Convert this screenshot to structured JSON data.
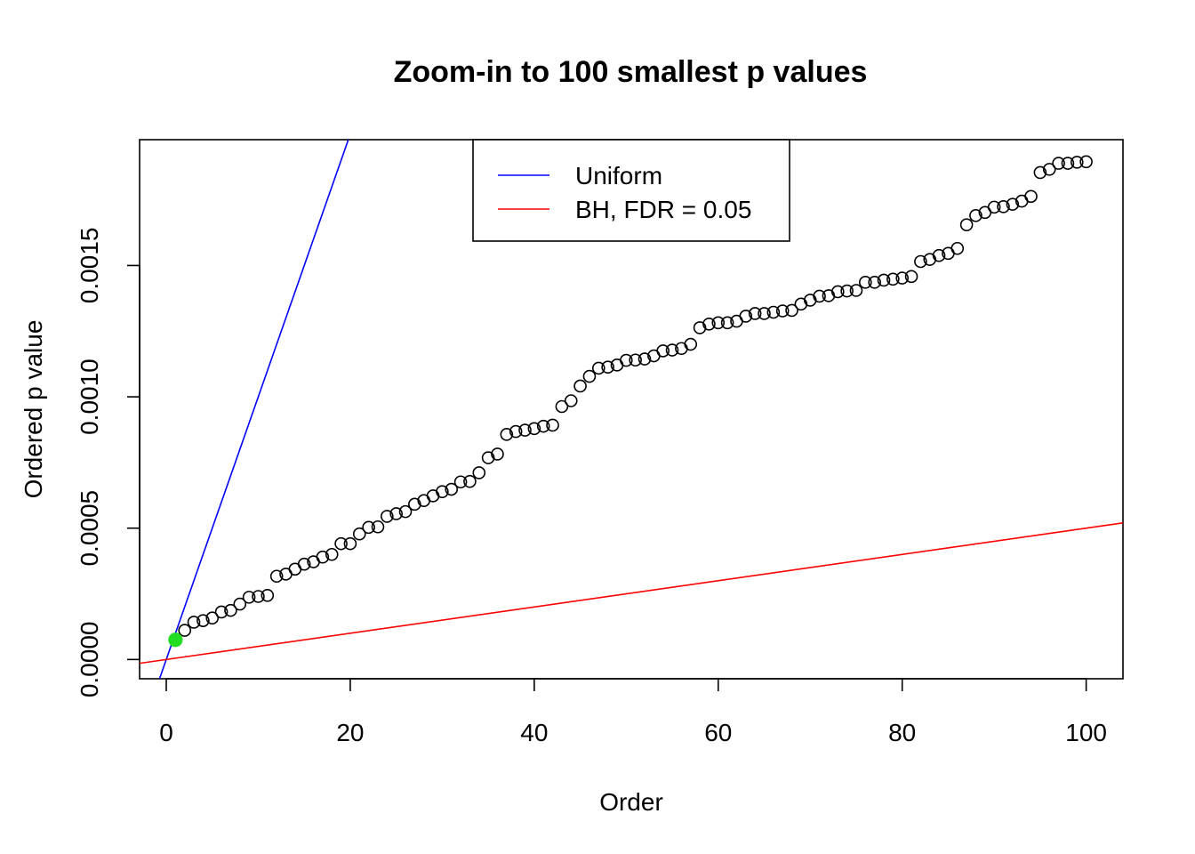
{
  "chart_data": {
    "type": "scatter",
    "title": "Zoom-in to 100 smallest p values",
    "xlabel": "Order",
    "ylabel": "Ordered p value",
    "xlim": [
      -2.9,
      104
    ],
    "ylim": [
      -7.33e-05,
      0.001979
    ],
    "x_ticks": [
      0,
      20,
      40,
      60,
      80,
      100
    ],
    "x_tick_labels": [
      "0",
      "20",
      "40",
      "60",
      "80",
      "100"
    ],
    "y_ticks": [
      0,
      0.0005,
      0.001,
      0.0015
    ],
    "y_tick_labels": [
      "0.0000",
      "0.0005",
      "0.0010",
      "0.0015"
    ],
    "series": [
      {
        "name": "Ordered p values",
        "marker": "open-circle",
        "x": [
          1,
          2,
          3,
          4,
          5,
          6,
          7,
          8,
          9,
          10,
          11,
          12,
          13,
          14,
          15,
          16,
          17,
          18,
          19,
          20,
          21,
          22,
          23,
          24,
          25,
          26,
          27,
          28,
          29,
          30,
          31,
          32,
          33,
          34,
          35,
          36,
          37,
          38,
          39,
          40,
          41,
          42,
          43,
          44,
          45,
          46,
          47,
          48,
          49,
          50,
          51,
          52,
          53,
          54,
          55,
          56,
          57,
          58,
          59,
          60,
          61,
          62,
          63,
          64,
          65,
          66,
          67,
          68,
          69,
          70,
          71,
          72,
          73,
          74,
          75,
          76,
          77,
          78,
          79,
          80,
          81,
          82,
          83,
          84,
          85,
          86,
          87,
          88,
          89,
          90,
          91,
          92,
          93,
          94,
          95,
          96,
          97,
          98,
          99,
          100
        ],
        "y": [
          7.5e-05,
          0.000111,
          0.000142,
          0.000148,
          0.000158,
          0.000181,
          0.000187,
          0.000211,
          0.000237,
          0.00024,
          0.000244,
          0.000317,
          0.000325,
          0.000344,
          0.000363,
          0.000372,
          0.00039,
          0.0004,
          0.000441,
          0.000441,
          0.000478,
          0.000503,
          0.000505,
          0.000545,
          0.000555,
          0.000563,
          0.000591,
          0.000605,
          0.000623,
          0.000639,
          0.000648,
          0.000676,
          0.000678,
          0.000711,
          0.000768,
          0.000782,
          0.000857,
          0.000868,
          0.000873,
          0.000879,
          0.000888,
          0.000892,
          0.000963,
          0.000985,
          0.001041,
          0.001078,
          0.001109,
          0.001113,
          0.001121,
          0.001139,
          0.00114,
          0.001144,
          0.001156,
          0.001175,
          0.001178,
          0.001184,
          0.0012,
          0.001263,
          0.001277,
          0.001282,
          0.001282,
          0.001288,
          0.001307,
          0.001317,
          0.001317,
          0.001322,
          0.001327,
          0.001329,
          0.001353,
          0.001368,
          0.001383,
          0.001385,
          0.0014,
          0.001403,
          0.001405,
          0.001436,
          0.001436,
          0.001444,
          0.001448,
          0.001452,
          0.001458,
          0.001515,
          0.001523,
          0.001538,
          0.001546,
          0.001565,
          0.001655,
          0.00169,
          0.001702,
          0.001722,
          0.001724,
          0.001733,
          0.001745,
          0.001763,
          0.001854,
          0.001866,
          0.001889,
          0.001889,
          0.001893,
          0.001895
        ]
      }
    ],
    "highlight": {
      "x": 1,
      "y": 7.5e-05,
      "color": "#22dd22",
      "marker": "filled-circle"
    },
    "lines": [
      {
        "name": "Uniform",
        "color": "#0000ff",
        "intercept": 0,
        "slope": 0.0001
      },
      {
        "name": "BH, FDR = 0.05",
        "color": "#ff0000",
        "intercept": 0,
        "slope": 5e-06
      }
    ],
    "legend": {
      "position": "top-center",
      "entries": [
        {
          "label": "Uniform",
          "color": "#0000ff"
        },
        {
          "label": "BH, FDR = 0.05",
          "color": "#ff0000"
        }
      ]
    }
  }
}
